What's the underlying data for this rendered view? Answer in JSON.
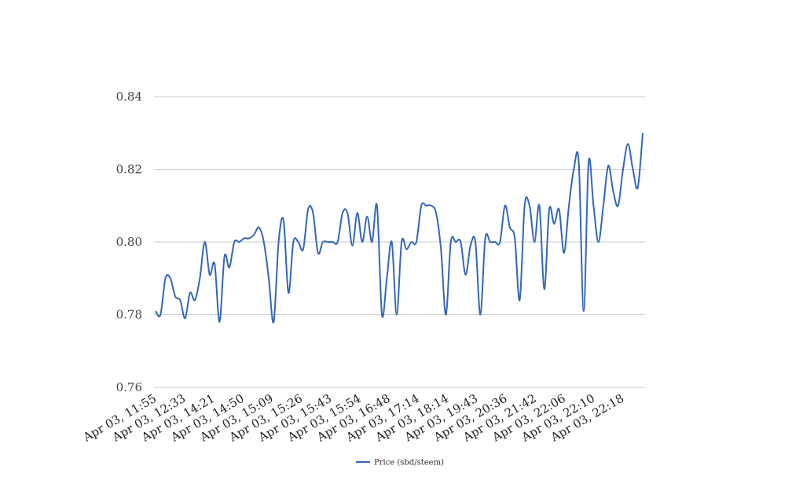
{
  "chart_data": {
    "type": "line",
    "title": "",
    "xlabel": "",
    "ylabel": "",
    "ylim": [
      0.76,
      0.84
    ],
    "yticks": [
      "0.76",
      "0.78",
      "0.80",
      "0.82",
      "0.84"
    ],
    "xtick_labels": [
      "Apr 03, 11:55",
      "Apr 03, 12:33",
      "Apr 03, 14:21",
      "Apr 03, 14:50",
      "Apr 03, 15:09",
      "Apr 03, 15:26",
      "Apr 03, 15:43",
      "Apr 03, 15:54",
      "Apr 03, 16:48",
      "Apr 03, 17:14",
      "Apr 03, 18:14",
      "Apr 03, 19:43",
      "Apr 03, 20:36",
      "Apr 03, 21:42",
      "Apr 03, 22:06",
      "Apr 03, 22:10",
      "Apr 03, 22:18"
    ],
    "grid": true,
    "legend": "bottom-center",
    "series": [
      {
        "name": "Price (sbd/steem)",
        "color": "#3366bb",
        "values": [
          0.781,
          0.78,
          0.79,
          0.79,
          0.785,
          0.784,
          0.779,
          0.786,
          0.784,
          0.79,
          0.8,
          0.791,
          0.794,
          0.778,
          0.796,
          0.793,
          0.8,
          0.8,
          0.801,
          0.801,
          0.802,
          0.804,
          0.8,
          0.79,
          0.778,
          0.8,
          0.806,
          0.786,
          0.8,
          0.8,
          0.798,
          0.809,
          0.808,
          0.797,
          0.8,
          0.8,
          0.8,
          0.8,
          0.808,
          0.808,
          0.799,
          0.808,
          0.8,
          0.807,
          0.8,
          0.81,
          0.78,
          0.79,
          0.8,
          0.78,
          0.8,
          0.798,
          0.8,
          0.8,
          0.81,
          0.81,
          0.81,
          0.808,
          0.798,
          0.78,
          0.8,
          0.8,
          0.8,
          0.791,
          0.799,
          0.8,
          0.78,
          0.801,
          0.8,
          0.8,
          0.8,
          0.81,
          0.804,
          0.801,
          0.784,
          0.81,
          0.81,
          0.8,
          0.81,
          0.787,
          0.809,
          0.805,
          0.809,
          0.797,
          0.81,
          0.82,
          0.822,
          0.781,
          0.822,
          0.81,
          0.8,
          0.81,
          0.821,
          0.814,
          0.81,
          0.82,
          0.827,
          0.82,
          0.815,
          0.83
        ]
      }
    ]
  }
}
